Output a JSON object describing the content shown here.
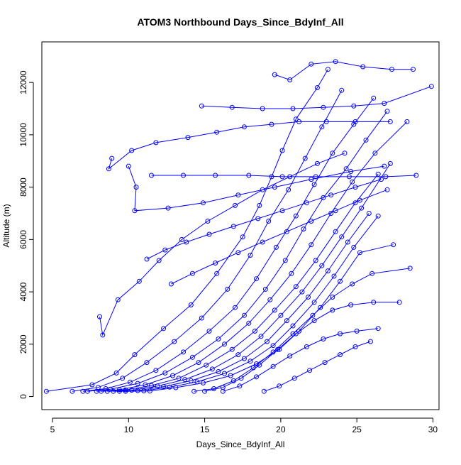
{
  "chart_data": {
    "type": "line",
    "title": "ATOM3 Northbound Days_Since_BdyInf_All",
    "xlabel": "Days_Since_BdyInf_All",
    "ylabel": "Altitude (m)",
    "xlim": [
      4.3,
      30.4
    ],
    "ylim": [
      -500,
      13550
    ],
    "xticks": [
      5,
      10,
      15,
      20,
      25,
      30
    ],
    "yticks": [
      0,
      2000,
      4000,
      6000,
      8000,
      10000,
      12000
    ],
    "grid": false,
    "legend": "none",
    "marker": "open-circle",
    "colors": {
      "series": "#0000ff",
      "axes": "#000000",
      "background": "#ffffff"
    },
    "series": [
      {
        "x": [
          4.6,
          7.6,
          9.2,
          10.4,
          12.3,
          14.1,
          15.8,
          17.5,
          18.6,
          19.4,
          20.1,
          21.0,
          22.4,
          23.1
        ],
        "y": [
          200,
          450,
          900,
          1600,
          2600,
          3500,
          4700,
          6100,
          7300,
          8400,
          9400,
          10600,
          11800,
          12500
        ]
      },
      {
        "x": [
          6.3,
          8.0,
          9.6,
          11.2,
          13.0,
          14.8,
          16.5,
          18.0,
          19.2,
          20.5,
          21.6,
          22.7,
          24.0
        ],
        "y": [
          200,
          350,
          700,
          1300,
          2100,
          3000,
          4100,
          5400,
          6700,
          7900,
          9100,
          10300,
          11700
        ]
      },
      {
        "x": [
          7.0,
          8.5,
          10.1,
          11.8,
          13.6,
          15.3,
          17.0,
          18.4,
          19.7,
          21.0,
          22.2,
          23.4,
          24.8,
          26.1
        ],
        "y": [
          200,
          300,
          550,
          1000,
          1700,
          2500,
          3400,
          4500,
          5700,
          6900,
          8100,
          9300,
          10400,
          11400
        ]
      },
      {
        "x": [
          7.3,
          8.8,
          10.6,
          12.4,
          14.2,
          15.9,
          17.6,
          19.0,
          20.3,
          21.5,
          22.8,
          24.3,
          25.6,
          27.0
        ],
        "y": [
          200,
          280,
          500,
          900,
          1500,
          2200,
          3100,
          4100,
          5200,
          6400,
          7600,
          8700,
          9800,
          10900
        ]
      },
      {
        "x": [
          7.9,
          9.4,
          11.1,
          12.9,
          14.6,
          16.3,
          17.9,
          19.3,
          20.7,
          22.0,
          23.3,
          24.7,
          26.2,
          28.3
        ],
        "y": [
          200,
          260,
          450,
          800,
          1300,
          2000,
          2800,
          3700,
          4700,
          5800,
          7000,
          8200,
          9300,
          10500
        ]
      },
      {
        "x": [
          8.2,
          9.8,
          11.5,
          13.3,
          15.1,
          16.8,
          18.3,
          19.6,
          21.0,
          22.3,
          23.6,
          24.9,
          26.4
        ],
        "y": [
          200,
          250,
          420,
          700,
          1200,
          1800,
          2500,
          3300,
          4200,
          5200,
          6300,
          7400,
          8500
        ]
      },
      {
        "x": [
          8.6,
          10.2,
          11.9,
          13.7,
          15.5,
          17.2,
          18.7,
          20.0,
          21.4,
          22.7,
          24.0,
          25.3,
          27.2
        ],
        "y": [
          200,
          240,
          400,
          650,
          1050,
          1600,
          2300,
          3100,
          4000,
          5000,
          6100,
          7200,
          8900
        ]
      },
      {
        "x": [
          9.0,
          10.6,
          12.3,
          14.1,
          15.9,
          17.6,
          19.1,
          20.4,
          21.8,
          23.1,
          24.4,
          25.8
        ],
        "y": [
          200,
          230,
          380,
          600,
          950,
          1450,
          2100,
          2900,
          3800,
          4800,
          5900,
          7000
        ]
      },
      {
        "x": [
          9.4,
          11.0,
          12.7,
          14.5,
          16.3,
          18.0,
          19.5,
          20.8,
          22.2,
          23.5,
          24.8,
          26.4
        ],
        "y": [
          200,
          220,
          360,
          560,
          880,
          1350,
          1950,
          2700,
          3600,
          4600,
          5700,
          6900
        ]
      },
      {
        "x": [
          9.8,
          11.4,
          13.1,
          14.9,
          16.7,
          18.4,
          19.9,
          21.2,
          22.6,
          23.9,
          25.2,
          27.4
        ],
        "y": [
          200,
          210,
          340,
          520,
          800,
          1250,
          1800,
          2500,
          3400,
          4400,
          5500,
          5800
        ]
      },
      {
        "x": [
          14.3,
          15.6,
          16.9,
          18.2,
          19.5,
          20.8,
          22.1,
          23.4,
          24.7,
          26.0,
          28.5
        ],
        "y": [
          200,
          300,
          600,
          1100,
          1700,
          2400,
          3100,
          3800,
          4300,
          4700,
          4900
        ]
      },
      {
        "x": [
          15.0,
          16.2,
          17.4,
          18.6,
          19.8,
          21.0,
          22.2,
          23.4,
          24.6,
          26.1,
          27.8
        ],
        "y": [
          200,
          350,
          700,
          1200,
          1800,
          2400,
          2900,
          3300,
          3500,
          3600,
          3600
        ]
      },
      {
        "x": [
          16.2,
          17.3,
          18.4,
          19.5,
          20.6,
          21.7,
          22.8,
          23.9,
          25.0,
          26.4
        ],
        "y": [
          200,
          400,
          750,
          1150,
          1550,
          1900,
          2200,
          2400,
          2500,
          2600
        ]
      },
      {
        "x": [
          18.9,
          19.9,
          20.9,
          21.9,
          22.9,
          23.9,
          24.9,
          25.9
        ],
        "y": [
          200,
          400,
          700,
          1000,
          1300,
          1600,
          1900,
          2100
        ]
      },
      {
        "x": [
          8.9,
          8.7,
          10.2,
          11.8,
          13.9,
          15.8,
          17.6,
          19.4,
          21.2,
          23.0,
          24.9,
          27.2
        ],
        "y": [
          9100,
          8700,
          9400,
          9700,
          9900,
          10100,
          10300,
          10400,
          10500,
          10500,
          10500,
          10500
        ]
      },
      {
        "x": [
          10.0,
          10.5,
          10.4,
          12.6,
          14.9,
          17.2,
          19.6,
          22.0,
          24.6,
          26.8
        ],
        "y": [
          8800,
          8000,
          7100,
          7200,
          7400,
          7700,
          8000,
          8300,
          8600,
          8800
        ]
      },
      {
        "x": [
          11.5,
          13.6,
          15.7,
          17.9,
          20.1,
          22.3,
          24.5,
          26.9,
          28.9
        ],
        "y": [
          8450,
          8450,
          8450,
          8450,
          8400,
          8400,
          8400,
          8400,
          8450
        ]
      },
      {
        "x": [
          14.8,
          16.8,
          18.8,
          20.8,
          22.8,
          24.8,
          26.8,
          29.9
        ],
        "y": [
          11100,
          11050,
          11000,
          11000,
          11050,
          11100,
          11200,
          11850
        ]
      },
      {
        "x": [
          19.6,
          20.6,
          22.0,
          23.6,
          25.4,
          27.3,
          28.7
        ],
        "y": [
          12300,
          12100,
          12700,
          12800,
          12600,
          12500,
          12500
        ]
      },
      {
        "x": [
          8.1,
          8.3,
          9.3,
          10.7,
          12.0,
          13.5,
          15.2,
          17.0,
          18.8,
          20.6,
          22.4,
          24.2
        ],
        "y": [
          3050,
          2350,
          3700,
          4400,
          5200,
          6000,
          6700,
          7300,
          7900,
          8400,
          8900,
          9300
        ]
      },
      {
        "x": [
          11.2,
          12.4,
          13.8,
          15.3,
          16.9,
          18.5,
          20.1,
          21.7,
          23.3,
          24.9,
          26.6
        ],
        "y": [
          5250,
          5600,
          5900,
          6200,
          6500,
          6800,
          7100,
          7400,
          7700,
          8000,
          8300
        ]
      },
      {
        "x": [
          12.8,
          14.2,
          15.7,
          17.2,
          18.8,
          20.4,
          22.0,
          23.6,
          25.2,
          27.0
        ],
        "y": [
          4300,
          4700,
          5100,
          5500,
          5900,
          6300,
          6700,
          7100,
          7500,
          7900
        ]
      }
    ]
  }
}
